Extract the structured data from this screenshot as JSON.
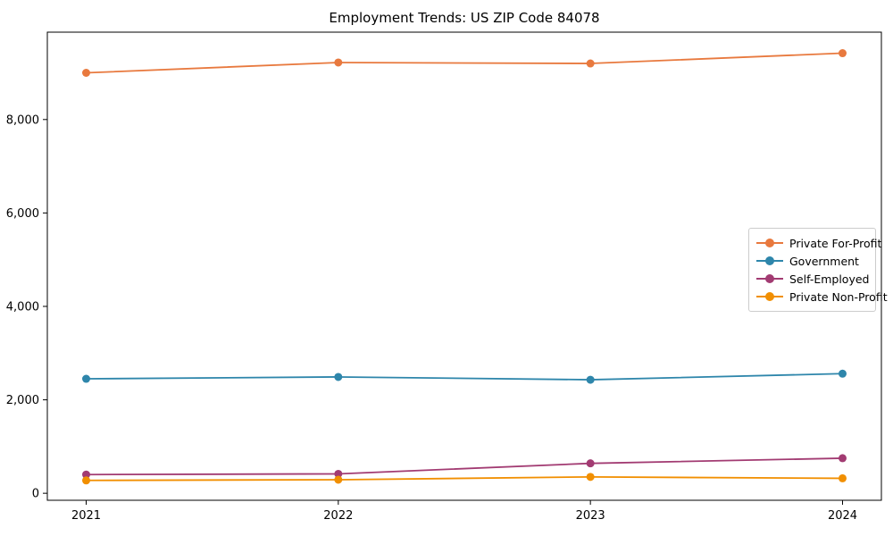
{
  "title": "Employment Trends: US ZIP Code 84078",
  "chart_data": {
    "type": "line",
    "title": "Employment Trends: US ZIP Code 84078",
    "x": [
      2021,
      2022,
      2023,
      2024
    ],
    "xtick_labels": [
      "2021",
      "2022",
      "2023",
      "2024"
    ],
    "yticks": [
      0,
      2000,
      4000,
      6000,
      8000
    ],
    "ytick_labels": [
      "0",
      "2,000",
      "4,000",
      "6,000",
      "8,000"
    ],
    "ylim": [
      -150,
      9870
    ],
    "xlabel": "",
    "ylabel": "",
    "grid": false,
    "marker": "circle",
    "legend_position": "center right",
    "series": [
      {
        "name": "Private For-Profit",
        "color": "#E8793E",
        "values": [
          9000,
          9220,
          9200,
          9420
        ]
      },
      {
        "name": "Government",
        "color": "#2E86AB",
        "values": [
          2450,
          2490,
          2430,
          2560
        ]
      },
      {
        "name": "Self-Employed",
        "color": "#A23B72",
        "values": [
          400,
          415,
          640,
          750
        ]
      },
      {
        "name": "Private Non-Profit",
        "color": "#F18F01",
        "values": [
          275,
          290,
          350,
          320
        ]
      }
    ],
    "axis_color": "#000000",
    "background_color": "#ffffff"
  }
}
